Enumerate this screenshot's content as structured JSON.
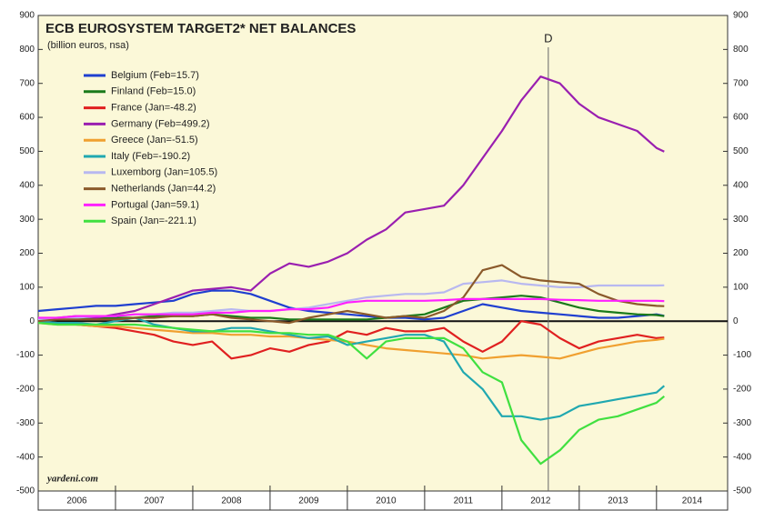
{
  "chart_data": {
    "type": "line",
    "title": "ECB EUROSYSTEM TARGET2* NET BALANCES",
    "subtitle": "(billion euros, nsa)",
    "source": "yardeni.com",
    "annotations": [
      {
        "text": "D",
        "x": 2012.6
      }
    ],
    "x": [
      2006,
      2006.25,
      2006.5,
      2006.75,
      2007,
      2007.25,
      2007.5,
      2007.75,
      2008,
      2008.25,
      2008.5,
      2008.75,
      2009,
      2009.25,
      2009.5,
      2009.75,
      2010,
      2010.25,
      2010.5,
      2010.75,
      2011,
      2011.25,
      2011.5,
      2011.75,
      2012,
      2012.25,
      2012.5,
      2012.75,
      2013,
      2013.25,
      2013.5,
      2013.75,
      2014,
      2014.1
    ],
    "xlim": [
      2006,
      2014.92
    ],
    "xticks": [
      2006,
      2007,
      2008,
      2009,
      2010,
      2011,
      2012,
      2013,
      2014
    ],
    "ylim": [
      -500,
      900
    ],
    "yticks": [
      -500,
      -400,
      -300,
      -200,
      -100,
      0,
      100,
      200,
      300,
      400,
      500,
      600,
      700,
      800,
      900
    ],
    "y2lim": [
      -500,
      900
    ],
    "y2ticks": [
      -500,
      -400,
      -300,
      -200,
      -100,
      0,
      100,
      200,
      300,
      400,
      500,
      600,
      700,
      800,
      900
    ],
    "legend": "upper left",
    "series": [
      {
        "name": "Belgium (Feb=15.7)",
        "color": "#1f3fd0",
        "values": [
          30,
          35,
          40,
          45,
          45,
          50,
          55,
          60,
          80,
          90,
          90,
          80,
          60,
          40,
          30,
          25,
          20,
          15,
          10,
          10,
          5,
          10,
          30,
          50,
          40,
          30,
          25,
          20,
          15,
          10,
          10,
          15,
          20,
          15.7
        ]
      },
      {
        "name": "Finland (Feb=15.0)",
        "color": "#1a7a1a",
        "values": [
          5,
          5,
          5,
          10,
          10,
          10,
          15,
          15,
          15,
          20,
          15,
          10,
          10,
          5,
          5,
          5,
          5,
          5,
          10,
          15,
          20,
          40,
          60,
          65,
          70,
          75,
          70,
          55,
          40,
          30,
          25,
          20,
          18,
          15.0
        ]
      },
      {
        "name": "France (Jan=-48.2)",
        "color": "#e02020",
        "values": [
          0,
          -5,
          -10,
          -15,
          -20,
          -30,
          -40,
          -60,
          -70,
          -60,
          -110,
          -100,
          -80,
          -90,
          -70,
          -60,
          -30,
          -40,
          -20,
          -30,
          -30,
          -20,
          -60,
          -90,
          -60,
          0,
          -10,
          -50,
          -80,
          -60,
          -50,
          -40,
          -50,
          -48.2
        ]
      },
      {
        "name": "Germany (Feb=499.2)",
        "color": "#9a1fb0",
        "values": [
          5,
          10,
          15,
          10,
          20,
          30,
          50,
          70,
          90,
          95,
          100,
          90,
          140,
          170,
          160,
          175,
          200,
          240,
          270,
          320,
          330,
          340,
          400,
          480,
          560,
          650,
          720,
          700,
          640,
          600,
          580,
          560,
          510,
          499.2
        ]
      },
      {
        "name": "Greece (Jan=-51.5)",
        "color": "#f0a030",
        "values": [
          -5,
          -10,
          -10,
          -15,
          -15,
          -20,
          -25,
          -30,
          -35,
          -35,
          -40,
          -40,
          -45,
          -45,
          -50,
          -55,
          -60,
          -70,
          -80,
          -85,
          -90,
          -95,
          -100,
          -110,
          -105,
          -100,
          -105,
          -110,
          -95,
          -80,
          -70,
          -60,
          -55,
          -51.5
        ]
      },
      {
        "name": "Italy (Feb=-190.2)",
        "color": "#20a8b0",
        "values": [
          0,
          -5,
          -5,
          -10,
          0,
          10,
          -10,
          -20,
          -30,
          -30,
          -20,
          -20,
          -30,
          -40,
          -50,
          -45,
          -70,
          -60,
          -50,
          -40,
          -40,
          -60,
          -150,
          -200,
          -280,
          -280,
          -290,
          -280,
          -250,
          -240,
          -230,
          -220,
          -210,
          -190.2
        ]
      },
      {
        "name": "Luxemborg (Jan=105.5)",
        "color": "#b8b8f0",
        "values": [
          5,
          10,
          10,
          15,
          15,
          20,
          20,
          25,
          25,
          30,
          35,
          30,
          30,
          35,
          40,
          50,
          60,
          70,
          75,
          80,
          80,
          85,
          110,
          115,
          120,
          110,
          105,
          100,
          100,
          105,
          105,
          105,
          105,
          105.5
        ]
      },
      {
        "name": "Netherlands (Jan=44.2)",
        "color": "#8b5a2b",
        "values": [
          0,
          5,
          5,
          5,
          5,
          10,
          10,
          15,
          15,
          20,
          10,
          5,
          0,
          -5,
          10,
          20,
          30,
          20,
          10,
          15,
          10,
          30,
          70,
          150,
          165,
          130,
          120,
          115,
          110,
          80,
          60,
          50,
          45,
          44.2
        ]
      },
      {
        "name": "Portugal (Jan=59.1)",
        "color": "#ff20ff",
        "values": [
          10,
          10,
          15,
          15,
          15,
          20,
          20,
          20,
          20,
          25,
          25,
          30,
          30,
          35,
          35,
          40,
          55,
          60,
          60,
          60,
          60,
          62,
          65,
          65,
          65,
          65,
          65,
          63,
          62,
          60,
          60,
          60,
          60,
          59.1
        ]
      },
      {
        "name": "Spain (Jan=-221.1)",
        "color": "#40e040",
        "values": [
          -5,
          -10,
          -10,
          -10,
          -10,
          -10,
          -15,
          -20,
          -25,
          -30,
          -30,
          -30,
          -35,
          -35,
          -40,
          -40,
          -60,
          -110,
          -60,
          -50,
          -50,
          -50,
          -80,
          -150,
          -180,
          -350,
          -420,
          -380,
          -320,
          -290,
          -280,
          -260,
          -240,
          -221.1
        ]
      }
    ]
  }
}
